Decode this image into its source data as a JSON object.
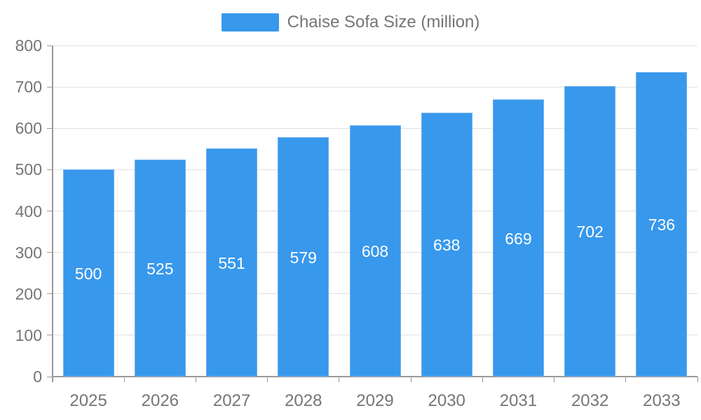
{
  "chart_data": {
    "type": "bar",
    "title": "",
    "legend": "Chaise Sofa Size (million)",
    "legend_position": "top-center",
    "categories": [
      "2025",
      "2026",
      "2027",
      "2028",
      "2029",
      "2030",
      "2031",
      "2032",
      "2033"
    ],
    "values": [
      500,
      525,
      551,
      579,
      608,
      638,
      669,
      702,
      736
    ],
    "xlabel": "",
    "ylabel": "",
    "ylim": [
      0,
      800
    ],
    "ytick_step": 100,
    "yticks": [
      "0",
      "100",
      "200",
      "300",
      "400",
      "500",
      "600",
      "700",
      "800"
    ],
    "grid": true,
    "colors": {
      "bar_fill": "#3898EC",
      "bar_border": "#6CB1F0",
      "value_label": "#FFFFFF",
      "axis_text": "#757575",
      "gridline": "#E0E0E0",
      "axis_line": "#999999",
      "tick": "#999999"
    }
  }
}
